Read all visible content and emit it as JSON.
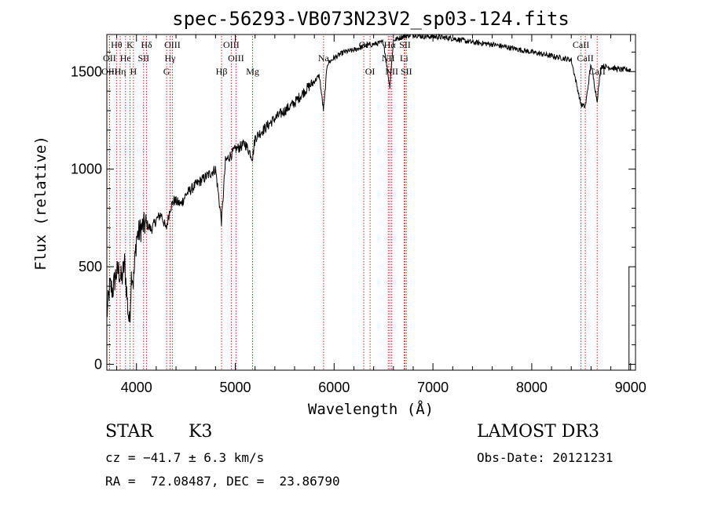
{
  "chart_data": {
    "type": "line",
    "title": "spec-56293-VB073N23V2_sp03-124.fits",
    "xlabel": "Wavelength (Å)",
    "ylabel": "Flux (relative)",
    "xlim": [
      3700,
      9050
    ],
    "ylim": [
      -30,
      1690
    ],
    "xticks": [
      4000,
      5000,
      6000,
      7000,
      8000,
      9000
    ],
    "yticks": [
      0,
      500,
      1000,
      1500
    ],
    "series": [
      {
        "name": "flux",
        "x": [
          3700,
          3730,
          3760,
          3790,
          3820,
          3850,
          3880,
          3910,
          3930,
          3950,
          3970,
          4000,
          4050,
          4100,
          4150,
          4200,
          4250,
          4300,
          4340,
          4380,
          4450,
          4500,
          4600,
          4700,
          4800,
          4861,
          4900,
          5000,
          5100,
          5175,
          5200,
          5300,
          5400,
          5500,
          5600,
          5700,
          5800,
          5850,
          5893,
          5930,
          6000,
          6100,
          6200,
          6300,
          6400,
          6500,
          6563,
          6600,
          6700,
          6800,
          6900,
          7000,
          7200,
          7400,
          7600,
          7800,
          8000,
          8200,
          8400,
          8498,
          8542,
          8600,
          8662,
          8700,
          8800,
          8900,
          9000
        ],
        "values": [
          250,
          400,
          380,
          460,
          480,
          430,
          520,
          300,
          200,
          480,
          420,
          650,
          700,
          720,
          690,
          740,
          770,
          690,
          800,
          840,
          820,
          870,
          920,
          960,
          1000,
          730,
          1040,
          1100,
          1130,
          1060,
          1160,
          1210,
          1260,
          1300,
          1340,
          1400,
          1450,
          1480,
          1300,
          1540,
          1570,
          1600,
          1610,
          1630,
          1640,
          1650,
          1420,
          1660,
          1680,
          1690,
          1680,
          1680,
          1670,
          1650,
          1640,
          1620,
          1600,
          1580,
          1560,
          1330,
          1320,
          1540,
          1350,
          1530,
          1520,
          1510,
          1510
        ]
      }
    ],
    "spectral_lines": [
      {
        "name": "Hθ",
        "wl": 3798,
        "row": 0
      },
      {
        "name": "OII",
        "wl": 3727,
        "row": 1
      },
      {
        "name": "OIII",
        "wl": 3727,
        "row": 2
      },
      {
        "name": "K",
        "wl": 3934,
        "row": 0
      },
      {
        "name": "He",
        "wl": 3889,
        "row": 1
      },
      {
        "name": "Hη",
        "wl": 3835,
        "row": 2
      },
      {
        "name": "Hδ",
        "wl": 4102,
        "row": 0
      },
      {
        "name": "SII",
        "wl": 4072,
        "row": 1
      },
      {
        "name": "H",
        "wl": 3969,
        "row": 2
      },
      {
        "name": "OIII",
        "wl": 4363,
        "row": 0
      },
      {
        "name": "Hγ",
        "wl": 4340,
        "row": 1
      },
      {
        "name": "G",
        "wl": 4305,
        "row": 2
      },
      {
        "name": "OIII",
        "wl": 4959,
        "row": 0
      },
      {
        "name": "OIII",
        "wl": 5007,
        "row": 1
      },
      {
        "name": "Hβ",
        "wl": 4861,
        "row": 2
      },
      {
        "name": "Mg",
        "wl": 5175,
        "row": 2
      },
      {
        "name": "Na",
        "wl": 5893,
        "row": 1
      },
      {
        "name": "OI",
        "wl": 6300,
        "row": 0
      },
      {
        "name": "OI",
        "wl": 6364,
        "row": 2
      },
      {
        "name": "NII",
        "wl": 6548,
        "row": 1
      },
      {
        "name": "NII",
        "wl": 6583,
        "row": 2
      },
      {
        "name": "Hα",
        "wl": 6563,
        "row": 0
      },
      {
        "name": "SII",
        "wl": 6717,
        "row": 0
      },
      {
        "name": "SII",
        "wl": 6731,
        "row": 2
      },
      {
        "name": "Li",
        "wl": 6708,
        "row": 1
      },
      {
        "name": "CaII",
        "wl": 8498,
        "row": 0
      },
      {
        "name": "CaII",
        "wl": 8542,
        "row": 1
      },
      {
        "name": "CaII",
        "wl": 8662,
        "row": 2
      }
    ]
  },
  "info": {
    "object_class": "STAR",
    "subclass": "K3",
    "survey": "LAMOST DR3",
    "redshift": "cz = −41.7 ± 6.3 km/s",
    "obs_date": "Obs-Date: 20121231",
    "coords": "RA =  72.08487, DEC =  23.86790"
  }
}
